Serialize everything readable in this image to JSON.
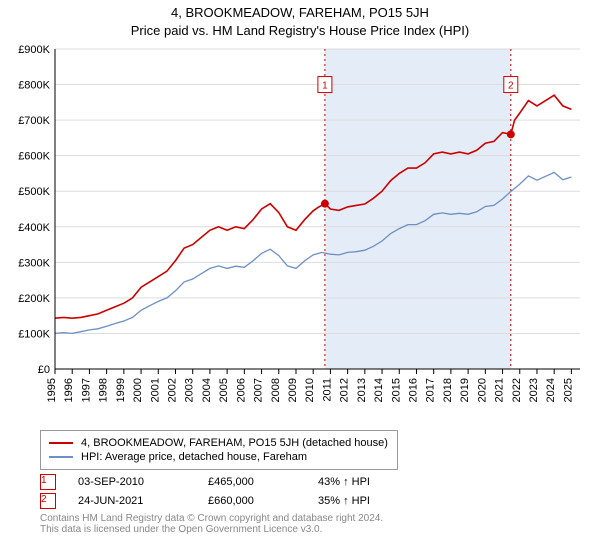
{
  "titles": {
    "line1": "4, BROOKMEADOW, FAREHAM, PO15 5JH",
    "line2": "Price paid vs. HM Land Registry's House Price Index (HPI)"
  },
  "chart": {
    "type": "line",
    "background_color": "#ffffff",
    "plot_border_color": "#888888",
    "grid_color": "#dddddd",
    "band_color": "#e3ecf7",
    "xlim": [
      1995,
      2025.5
    ],
    "ylim": [
      0,
      900000
    ],
    "ytick_step": 100000,
    "yticks": [
      "£0",
      "£100K",
      "£200K",
      "£300K",
      "£400K",
      "£500K",
      "£600K",
      "£700K",
      "£800K",
      "£900K"
    ],
    "xticks": [
      1995,
      1996,
      1997,
      1998,
      1999,
      2000,
      2001,
      2002,
      2003,
      2004,
      2005,
      2006,
      2007,
      2008,
      2009,
      2010,
      2011,
      2012,
      2013,
      2014,
      2015,
      2016,
      2017,
      2018,
      2019,
      2020,
      2021,
      2022,
      2023,
      2024,
      2025
    ],
    "series": [
      {
        "name": "property",
        "color": "#cc0000",
        "width": 1.6,
        "data": [
          [
            1995,
            143000
          ],
          [
            1995.5,
            145000
          ],
          [
            1996,
            143000
          ],
          [
            1996.5,
            145000
          ],
          [
            1997,
            150000
          ],
          [
            1997.5,
            155000
          ],
          [
            1998,
            165000
          ],
          [
            1998.5,
            175000
          ],
          [
            1999,
            185000
          ],
          [
            1999.5,
            200000
          ],
          [
            2000,
            230000
          ],
          [
            2000.5,
            245000
          ],
          [
            2001,
            260000
          ],
          [
            2001.5,
            275000
          ],
          [
            2002,
            305000
          ],
          [
            2002.5,
            340000
          ],
          [
            2003,
            350000
          ],
          [
            2003.5,
            370000
          ],
          [
            2004,
            390000
          ],
          [
            2004.5,
            400000
          ],
          [
            2005,
            390000
          ],
          [
            2005.5,
            400000
          ],
          [
            2006,
            395000
          ],
          [
            2006.5,
            420000
          ],
          [
            2007,
            450000
          ],
          [
            2007.5,
            465000
          ],
          [
            2008,
            440000
          ],
          [
            2008.5,
            400000
          ],
          [
            2009,
            390000
          ],
          [
            2009.5,
            420000
          ],
          [
            2010,
            445000
          ],
          [
            2010.3,
            455000
          ],
          [
            2010.68,
            465000
          ],
          [
            2011,
            450000
          ],
          [
            2011.5,
            446000
          ],
          [
            2012,
            456000
          ],
          [
            2012.5,
            460000
          ],
          [
            2013,
            464000
          ],
          [
            2013.5,
            480000
          ],
          [
            2014,
            500000
          ],
          [
            2014.5,
            530000
          ],
          [
            2015,
            550000
          ],
          [
            2015.5,
            565000
          ],
          [
            2016,
            565000
          ],
          [
            2016.5,
            580000
          ],
          [
            2017,
            605000
          ],
          [
            2017.5,
            610000
          ],
          [
            2018,
            605000
          ],
          [
            2018.5,
            610000
          ],
          [
            2019,
            605000
          ],
          [
            2019.5,
            615000
          ],
          [
            2020,
            635000
          ],
          [
            2020.5,
            640000
          ],
          [
            2021,
            665000
          ],
          [
            2021.48,
            660000
          ],
          [
            2021.7,
            700000
          ],
          [
            2022,
            720000
          ],
          [
            2022.5,
            755000
          ],
          [
            2023,
            740000
          ],
          [
            2023.5,
            755000
          ],
          [
            2024,
            770000
          ],
          [
            2024.5,
            740000
          ],
          [
            2025,
            730000
          ]
        ]
      },
      {
        "name": "hpi",
        "color": "#6e8fc5",
        "width": 1.3,
        "data": [
          [
            1995,
            100000
          ],
          [
            1995.5,
            102000
          ],
          [
            1996,
            100000
          ],
          [
            1996.5,
            105000
          ],
          [
            1997,
            110000
          ],
          [
            1997.5,
            113000
          ],
          [
            1998,
            120000
          ],
          [
            1998.5,
            128000
          ],
          [
            1999,
            135000
          ],
          [
            1999.5,
            145000
          ],
          [
            2000,
            165000
          ],
          [
            2000.5,
            178000
          ],
          [
            2001,
            190000
          ],
          [
            2001.5,
            200000
          ],
          [
            2002,
            220000
          ],
          [
            2002.5,
            245000
          ],
          [
            2003,
            253000
          ],
          [
            2003.5,
            268000
          ],
          [
            2004,
            283000
          ],
          [
            2004.5,
            290000
          ],
          [
            2005,
            283000
          ],
          [
            2005.5,
            289000
          ],
          [
            2006,
            286000
          ],
          [
            2006.5,
            304000
          ],
          [
            2007,
            325000
          ],
          [
            2007.5,
            337000
          ],
          [
            2008,
            319000
          ],
          [
            2008.5,
            290000
          ],
          [
            2009,
            283000
          ],
          [
            2009.5,
            304000
          ],
          [
            2010,
            321000
          ],
          [
            2010.5,
            328000
          ],
          [
            2011,
            323000
          ],
          [
            2011.5,
            321000
          ],
          [
            2012,
            328000
          ],
          [
            2012.5,
            330000
          ],
          [
            2013,
            334000
          ],
          [
            2013.5,
            345000
          ],
          [
            2014,
            360000
          ],
          [
            2014.5,
            381000
          ],
          [
            2015,
            395000
          ],
          [
            2015.5,
            406000
          ],
          [
            2016,
            406000
          ],
          [
            2016.5,
            417000
          ],
          [
            2017,
            435000
          ],
          [
            2017.5,
            439000
          ],
          [
            2018,
            435000
          ],
          [
            2018.5,
            438000
          ],
          [
            2019,
            435000
          ],
          [
            2019.5,
            442000
          ],
          [
            2020,
            457000
          ],
          [
            2020.5,
            460000
          ],
          [
            2021,
            478000
          ],
          [
            2021.5,
            500000
          ],
          [
            2022,
            520000
          ],
          [
            2022.5,
            543000
          ],
          [
            2023,
            531000
          ],
          [
            2023.5,
            542000
          ],
          [
            2024,
            553000
          ],
          [
            2024.5,
            532000
          ],
          [
            2025,
            540000
          ]
        ]
      }
    ],
    "markers": [
      {
        "n": "1",
        "x": 2010.68,
        "y": 465000,
        "label_y": 800000
      },
      {
        "n": "2",
        "x": 2021.48,
        "y": 660000,
        "label_y": 800000
      }
    ],
    "marker_color": "#cc0000",
    "marker_dash_color": "#cc0000"
  },
  "legend": {
    "items": [
      {
        "color": "#cc0000",
        "label": "4, BROOKMEADOW, FAREHAM, PO15 5JH (detached house)"
      },
      {
        "color": "#6e8fc5",
        "label": "HPI: Average price, detached house, Fareham"
      }
    ]
  },
  "transactions": [
    {
      "n": "1",
      "date": "03-SEP-2010",
      "price": "£465,000",
      "pct": "43% ↑ HPI"
    },
    {
      "n": "2",
      "date": "24-JUN-2021",
      "price": "£660,000",
      "pct": "35% ↑ HPI"
    }
  ],
  "footer": {
    "line1": "Contains HM Land Registry data © Crown copyright and database right 2024.",
    "line2": "This data is licensed under the Open Government Licence v3.0."
  }
}
